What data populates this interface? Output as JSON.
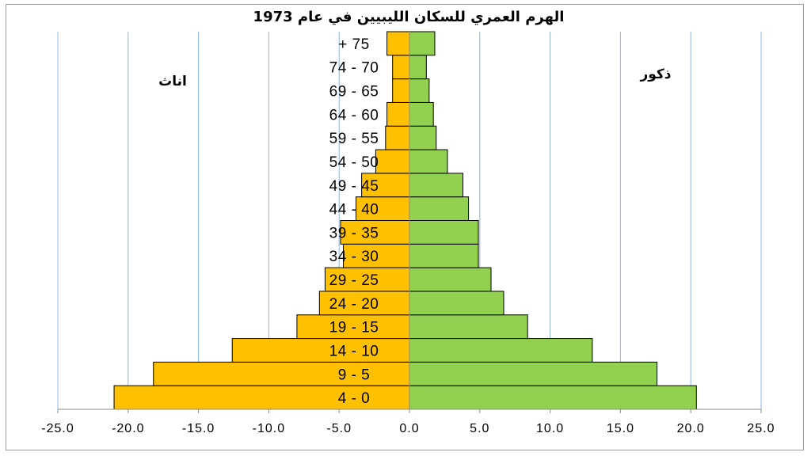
{
  "chart_data": {
    "type": "bar",
    "orientation": "horizontal",
    "title": "الهرم العمري للسكان الليبيين في عام 1973",
    "left_label": "اناث",
    "right_label": "ذكور",
    "categories": [
      "4 - 0",
      "9 - 5",
      "14 - 10",
      "19 - 15",
      "24 - 20",
      "29 - 25",
      "34 - 30",
      "39 - 35",
      "44 - 40",
      "49 - 45",
      "54 - 50",
      "59 - 55",
      "64 - 60",
      "69 - 65",
      "74 - 70",
      "+ 75"
    ],
    "series": [
      {
        "values": [
          -21.0,
          -18.2,
          -12.6,
          -8.0,
          -6.4,
          -6.0,
          -4.7,
          -4.9,
          -3.8,
          -3.4,
          -2.4,
          -1.7,
          -1.6,
          -1.2,
          -1.2,
          -1.6
        ],
        "color": "#FFC000"
      },
      {
        "values": [
          20.4,
          17.6,
          13.0,
          8.4,
          6.7,
          5.8,
          4.9,
          4.9,
          4.2,
          3.8,
          2.7,
          1.9,
          1.7,
          1.4,
          1.2,
          1.8
        ],
        "color": "#92D050"
      }
    ],
    "xlim": [
      -25,
      25
    ],
    "xticks": [
      "-25.0",
      "-20.0",
      "-15.0",
      "-10.0",
      "-5.0",
      "0.0",
      "5.0",
      "10.0",
      "15.0",
      "20.0",
      "25.0"
    ],
    "xtick_values": [
      -25,
      -20,
      -15,
      -10,
      -5,
      0,
      5,
      10,
      15,
      20,
      25
    ],
    "grid": true,
    "grid_color": "#8EB4E3"
  }
}
